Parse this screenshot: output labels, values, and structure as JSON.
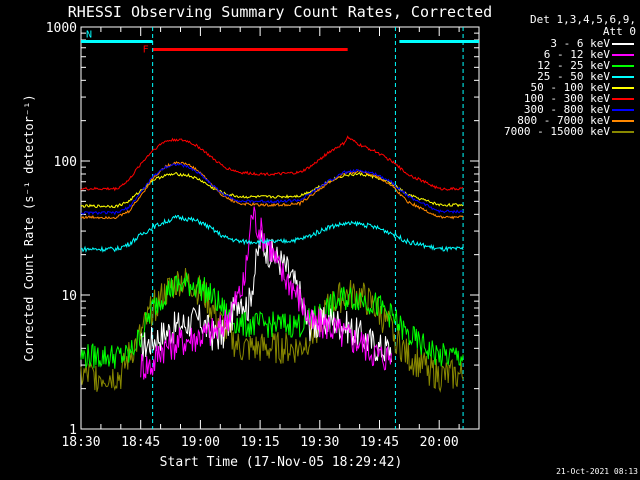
{
  "chart_data": {
    "type": "line",
    "title": "RHESSI Observing Summary Count Rates, Corrected",
    "xlabel": "Start Time (17-Nov-05 18:29:42)",
    "ylabel": "Corrected Count Rate (s⁻¹ detector⁻¹)",
    "yscale": "log",
    "ylim": [
      1,
      1000
    ],
    "xlim_minutes": [
      0,
      100
    ],
    "x_tick_labels": [
      "18:30",
      "18:45",
      "19:00",
      "19:15",
      "19:30",
      "19:45",
      "20:00"
    ],
    "x_tick_minutes": [
      0,
      15,
      30,
      45,
      60,
      75,
      90
    ],
    "y_tick_labels": [
      "1",
      "10",
      "100",
      "1000"
    ],
    "y_tick_values": [
      1,
      10,
      100,
      1000
    ],
    "attenuator_note": "Det 1,3,4,5,6,9,",
    "attenuator_note2": "Att 0",
    "flags": [
      {
        "label": "N",
        "color": "#00ffff",
        "segments": [
          [
            0,
            18
          ],
          [
            80,
            100
          ]
        ],
        "level": 780
      },
      {
        "label": "F",
        "color": "#ff0000",
        "segments": [
          [
            18,
            67
          ]
        ],
        "level": 680
      }
    ],
    "markers": [
      {
        "minute": 18,
        "color": "#00ffff"
      },
      {
        "minute": 79,
        "color": "#00ffff"
      },
      {
        "minute": 96,
        "color": "#00ffff"
      }
    ],
    "series": [
      {
        "name": "3 - 6 keV",
        "color": "#ffffff",
        "x": [
          15,
          20,
          25,
          30,
          33,
          36,
          40,
          42,
          45,
          48,
          50,
          52,
          55,
          57,
          60,
          63,
          66,
          70,
          75,
          78
        ],
        "y": [
          4,
          5,
          6,
          6.5,
          5,
          5,
          10,
          8,
          25,
          20,
          18,
          15,
          10,
          6,
          6,
          6.5,
          6,
          5,
          4,
          4
        ]
      },
      {
        "name": "6 - 12 keV",
        "color": "#ff00ff",
        "x": [
          15,
          18,
          20,
          25,
          30,
          35,
          38,
          41,
          43,
          45,
          47,
          50,
          53,
          56,
          58,
          62,
          66,
          70,
          75,
          78
        ],
        "y": [
          3,
          3,
          4,
          4.5,
          5,
          5.5,
          8,
          12,
          42,
          30,
          25,
          15,
          12,
          8,
          6,
          6,
          5,
          4.5,
          3.5,
          3.5
        ]
      },
      {
        "name": "12 - 25 keV",
        "color": "#00ff00",
        "x": [
          0,
          12,
          15,
          18,
          22,
          25,
          28,
          31,
          34,
          37,
          40,
          45,
          50,
          55,
          58,
          62,
          66,
          70,
          74,
          78,
          82,
          90,
          96
        ],
        "y": [
          3.5,
          3.5,
          5,
          8,
          11,
          12,
          12,
          11,
          9,
          7,
          6,
          6,
          6,
          6,
          6.5,
          8,
          9.5,
          9.5,
          8.5,
          7,
          5,
          3.5,
          3.5
        ]
      },
      {
        "name": "25 - 50 keV",
        "color": "#00ffff",
        "x": [
          0,
          9,
          12,
          15,
          18,
          21,
          24,
          27,
          30,
          33,
          36,
          40,
          45,
          50,
          55,
          58,
          62,
          66,
          70,
          74,
          78,
          82,
          90,
          96
        ],
        "y": [
          22,
          22,
          24,
          28,
          32,
          35,
          38,
          37,
          35,
          31,
          27,
          25,
          25,
          25,
          26,
          28,
          32,
          34,
          34,
          32,
          29,
          25,
          22,
          22
        ]
      },
      {
        "name": "50 - 100 keV",
        "color": "#ffff00",
        "x": [
          0,
          9,
          12,
          15,
          18,
          21,
          24,
          27,
          30,
          33,
          36,
          40,
          45,
          50,
          55,
          58,
          62,
          66,
          70,
          74,
          78,
          82,
          90,
          96
        ],
        "y": [
          46,
          46,
          50,
          60,
          72,
          78,
          80,
          78,
          72,
          63,
          57,
          54,
          54,
          54,
          55,
          60,
          70,
          78,
          80,
          76,
          68,
          56,
          47,
          47
        ]
      },
      {
        "name": "100 - 300 keV",
        "color": "#ff0000",
        "x": [
          0,
          9,
          12,
          15,
          18,
          21,
          24,
          27,
          30,
          33,
          36,
          40,
          45,
          50,
          55,
          58,
          62,
          66,
          67,
          70,
          74,
          78,
          82,
          90,
          96
        ],
        "y": [
          62,
          62,
          72,
          95,
          120,
          140,
          145,
          140,
          125,
          105,
          90,
          82,
          80,
          80,
          82,
          92,
          115,
          135,
          150,
          132,
          118,
          100,
          80,
          62,
          62
        ]
      },
      {
        "name": "300 - 800 keV",
        "color": "#0000ff",
        "x": [
          0,
          9,
          12,
          15,
          18,
          21,
          24,
          27,
          30,
          33,
          36,
          40,
          45,
          50,
          55,
          58,
          62,
          66,
          70,
          74,
          78,
          82,
          90,
          96
        ],
        "y": [
          41,
          41,
          45,
          58,
          76,
          90,
          95,
          90,
          80,
          66,
          56,
          50,
          50,
          50,
          51,
          58,
          70,
          82,
          85,
          80,
          70,
          55,
          42,
          42
        ]
      },
      {
        "name": "800 - 7000 keV",
        "color": "#ff8800",
        "x": [
          0,
          9,
          12,
          15,
          18,
          21,
          24,
          27,
          30,
          33,
          36,
          40,
          45,
          50,
          55,
          58,
          62,
          66,
          70,
          74,
          78,
          82,
          90,
          96
        ],
        "y": [
          38,
          38,
          42,
          55,
          74,
          90,
          98,
          94,
          82,
          66,
          54,
          48,
          47,
          47,
          48,
          56,
          68,
          80,
          84,
          78,
          66,
          50,
          38,
          38
        ]
      },
      {
        "name": "7000 - 15000 keV",
        "color": "#888800",
        "x": [
          0,
          10,
          12,
          15,
          18,
          22,
          25,
          28,
          31,
          34,
          37,
          40,
          45,
          50,
          55,
          58,
          62,
          66,
          70,
          74,
          78,
          82,
          90,
          96
        ],
        "y": [
          2.5,
          2.5,
          3.5,
          5,
          8,
          11,
          13,
          12,
          10,
          7,
          5,
          4,
          4,
          4,
          4,
          5,
          8,
          10,
          10,
          8,
          5.5,
          3.5,
          2.5,
          2.5
        ]
      }
    ]
  },
  "timestamp": "21-Oct-2021 08:13"
}
